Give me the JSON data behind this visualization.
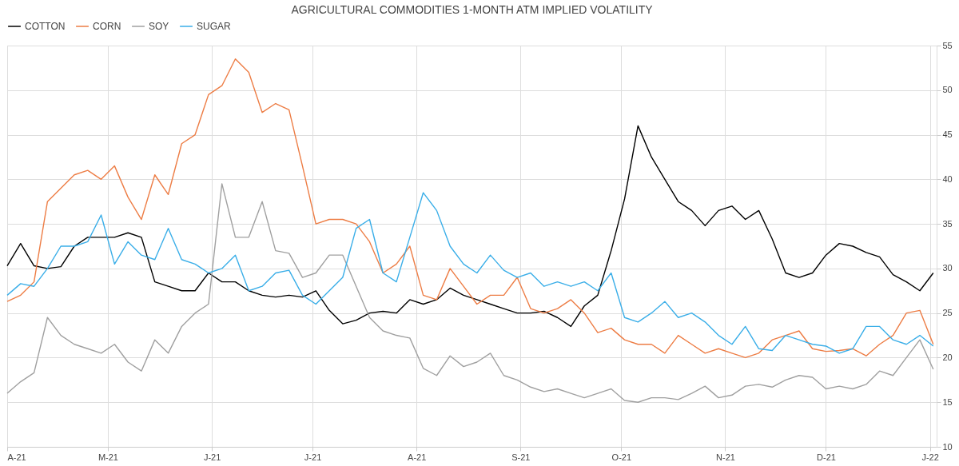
{
  "chart_data": {
    "type": "line",
    "title": "AGRICULTURAL COMMODITIES 1-MONTH ATM IMPLIED VOLATILITY",
    "x": [
      "2021-04-01",
      "2021-04-05",
      "2021-04-09",
      "2021-04-13",
      "2021-04-17",
      "2021-04-21",
      "2021-04-25",
      "2021-04-29",
      "2021-05-03",
      "2021-05-07",
      "2021-05-11",
      "2021-05-15",
      "2021-05-19",
      "2021-05-23",
      "2021-05-27",
      "2021-05-31",
      "2021-06-04",
      "2021-06-08",
      "2021-06-12",
      "2021-06-16",
      "2021-06-20",
      "2021-06-24",
      "2021-06-28",
      "2021-07-02",
      "2021-07-06",
      "2021-07-10",
      "2021-07-14",
      "2021-07-18",
      "2021-07-22",
      "2021-07-26",
      "2021-07-30",
      "2021-08-03",
      "2021-08-07",
      "2021-08-11",
      "2021-08-15",
      "2021-08-19",
      "2021-08-23",
      "2021-08-27",
      "2021-08-31",
      "2021-09-04",
      "2021-09-08",
      "2021-09-12",
      "2021-09-16",
      "2021-09-20",
      "2021-09-24",
      "2021-09-28",
      "2021-10-02",
      "2021-10-06",
      "2021-10-10",
      "2021-10-14",
      "2021-10-18",
      "2021-10-22",
      "2021-10-26",
      "2021-10-30",
      "2021-11-03",
      "2021-11-07",
      "2021-11-11",
      "2021-11-15",
      "2021-11-19",
      "2021-11-23",
      "2021-11-27",
      "2021-12-01",
      "2021-12-05",
      "2021-12-09",
      "2021-12-13",
      "2021-12-17",
      "2021-12-21",
      "2021-12-25",
      "2021-12-29",
      "2022-01-02"
    ],
    "series": [
      {
        "name": "COTTON",
        "color": "#000000",
        "values": [
          30.3,
          32.8,
          30.3,
          30,
          30.2,
          32.5,
          33.5,
          33.5,
          33.5,
          34,
          33.5,
          28.5,
          28,
          27.5,
          27.5,
          29.5,
          28.5,
          28.5,
          27.5,
          27,
          26.8,
          27,
          26.8,
          27.5,
          25.3,
          23.8,
          24.2,
          25,
          25.2,
          25,
          26.5,
          26,
          26.5,
          27.8,
          27,
          26.5,
          26,
          25.5,
          25,
          25,
          25.2,
          24.5,
          23.5,
          25.8,
          27,
          32,
          37.8,
          46,
          42.5,
          40,
          37.5,
          36.5,
          34.8,
          36.5,
          37,
          35.5,
          36.5,
          33.3,
          29.5,
          29,
          29.5,
          31.5,
          32.8,
          32.5,
          31.8,
          31.3,
          29.3,
          28.5,
          27.5,
          29.5
        ]
      },
      {
        "name": "CORN",
        "color": "#ed7d45",
        "values": [
          26.3,
          27,
          28.5,
          37.5,
          39,
          40.5,
          41,
          40,
          41.5,
          38,
          35.5,
          40.5,
          38.3,
          44,
          45,
          49.5,
          50.5,
          53.5,
          52,
          47.5,
          48.5,
          47.8,
          41.5,
          35,
          35.5,
          35.5,
          35,
          33,
          29.5,
          30.5,
          32.5,
          27,
          26.5,
          30,
          28,
          26,
          27,
          27,
          29,
          25.5,
          25,
          25.5,
          26.5,
          25,
          22.8,
          23.3,
          22,
          21.5,
          21.5,
          20.5,
          22.5,
          21.5,
          20.5,
          21,
          20.5,
          20,
          20.5,
          22,
          22.5,
          23,
          21,
          20.7,
          20.8,
          21,
          20.2,
          21.5,
          22.5,
          25,
          25.3,
          21.5
        ]
      },
      {
        "name": "SOY",
        "color": "#a0a0a0",
        "values": [
          16,
          17.3,
          18.3,
          24.5,
          22.5,
          21.5,
          21,
          20.5,
          21.5,
          19.5,
          18.5,
          22,
          20.5,
          23.5,
          25,
          26,
          39.5,
          33.5,
          33.5,
          37.5,
          32,
          31.7,
          29,
          29.5,
          31.5,
          31.5,
          28,
          24.5,
          23,
          22.5,
          22.2,
          18.8,
          18,
          20.2,
          19,
          19.5,
          20.5,
          18,
          17.5,
          16.7,
          16.2,
          16.5,
          16,
          15.5,
          16,
          16.5,
          15.2,
          15,
          15.5,
          15.5,
          15.3,
          16,
          16.8,
          15.5,
          15.8,
          16.8,
          17,
          16.7,
          17.5,
          18,
          17.8,
          16.5,
          16.8,
          16.5,
          17,
          18.5,
          18,
          20,
          22,
          18.7
        ]
      },
      {
        "name": "SUGAR",
        "color": "#3aaee8",
        "values": [
          27,
          28.3,
          28,
          30,
          32.5,
          32.5,
          33,
          36,
          30.5,
          33,
          31.5,
          31,
          34.5,
          31,
          30.5,
          29.5,
          30,
          31.5,
          27.5,
          28,
          29.5,
          29.8,
          27,
          26,
          27.5,
          29,
          34.5,
          35.5,
          29.5,
          28.5,
          33.5,
          38.5,
          36.5,
          32.5,
          30.5,
          29.5,
          31.5,
          29.8,
          29,
          29.5,
          28,
          28.5,
          28,
          28.5,
          27.5,
          29.5,
          24.5,
          24,
          25,
          26.3,
          24.5,
          25,
          24,
          22.5,
          21.5,
          23.5,
          21,
          20.8,
          22.5,
          22,
          21.5,
          21.3,
          20.5,
          21,
          23.5,
          23.5,
          22,
          21.5,
          22.5,
          21.3
        ]
      }
    ],
    "xlim": [
      "2021-04-01",
      "2022-01-03"
    ],
    "xticks": [
      {
        "value": "2021-04-01",
        "label": "A-21"
      },
      {
        "value": "2021-05-01",
        "label": "M-21"
      },
      {
        "value": "2021-06-01",
        "label": "J-21"
      },
      {
        "value": "2021-07-01",
        "label": "J-21"
      },
      {
        "value": "2021-08-01",
        "label": "A-21"
      },
      {
        "value": "2021-09-01",
        "label": "S-21"
      },
      {
        "value": "2021-10-01",
        "label": "O-21"
      },
      {
        "value": "2021-11-01",
        "label": "N-21"
      },
      {
        "value": "2021-12-01",
        "label": "D-21"
      },
      {
        "value": "2022-01-01",
        "label": "J-22"
      }
    ],
    "ylim": [
      10,
      55
    ],
    "yticks": [
      10,
      15,
      20,
      25,
      30,
      35,
      40,
      45,
      50,
      55
    ],
    "grid": true,
    "legend": "top",
    "line_style": "solid",
    "marker": "none"
  }
}
